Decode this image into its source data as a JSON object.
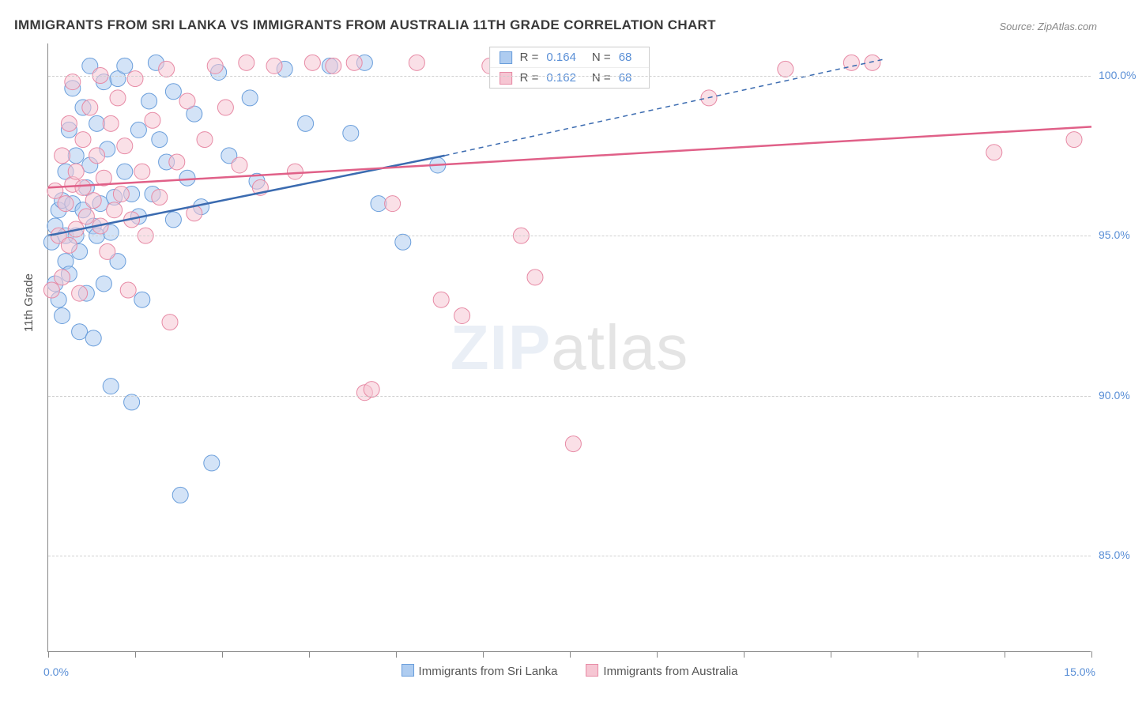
{
  "title": "IMMIGRANTS FROM SRI LANKA VS IMMIGRANTS FROM AUSTRALIA 11TH GRADE CORRELATION CHART",
  "source": "Source: ZipAtlas.com",
  "ylabel": "11th Grade",
  "watermark_zip": "ZIP",
  "watermark_atlas": "atlas",
  "chart": {
    "type": "scatter",
    "xlim": [
      0,
      15
    ],
    "ylim": [
      82,
      101
    ],
    "xticks_low": "0.0%",
    "xticks_high": "15.0%",
    "xtick_positions": [
      0,
      1.25,
      2.5,
      3.75,
      5.0,
      6.25,
      7.5,
      8.75,
      10.0,
      11.25,
      12.5,
      13.75,
      15.0
    ],
    "yticks": [
      {
        "v": 85,
        "label": "85.0%"
      },
      {
        "v": 90,
        "label": "90.0%"
      },
      {
        "v": 95,
        "label": "95.0%"
      },
      {
        "v": 100,
        "label": "100.0%"
      }
    ],
    "grid_color": "#d0d0d0",
    "background_color": "#ffffff",
    "marker_radius": 10,
    "marker_opacity": 0.55,
    "series": [
      {
        "name": "Immigrants from Sri Lanka",
        "fill": "#aeccf0",
        "stroke": "#6a9edb",
        "line_color": "#3b6bb0",
        "trend": {
          "x0": 0,
          "y0": 95.0,
          "x_solid_end": 5.7,
          "y_solid_end": 97.5,
          "x1": 12.0,
          "y1": 100.5
        },
        "points": [
          [
            0.05,
            94.8
          ],
          [
            0.1,
            95.3
          ],
          [
            0.1,
            93.5
          ],
          [
            0.15,
            93.0
          ],
          [
            0.15,
            95.8
          ],
          [
            0.2,
            92.5
          ],
          [
            0.2,
            96.1
          ],
          [
            0.25,
            95.0
          ],
          [
            0.25,
            97.0
          ],
          [
            0.25,
            94.2
          ],
          [
            0.3,
            98.3
          ],
          [
            0.3,
            93.8
          ],
          [
            0.35,
            96.0
          ],
          [
            0.35,
            99.6
          ],
          [
            0.4,
            95.0
          ],
          [
            0.4,
            97.5
          ],
          [
            0.45,
            94.5
          ],
          [
            0.45,
            92.0
          ],
          [
            0.5,
            99.0
          ],
          [
            0.5,
            95.8
          ],
          [
            0.55,
            93.2
          ],
          [
            0.55,
            96.5
          ],
          [
            0.6,
            97.2
          ],
          [
            0.6,
            100.3
          ],
          [
            0.65,
            95.3
          ],
          [
            0.65,
            91.8
          ],
          [
            0.7,
            98.5
          ],
          [
            0.7,
            95.0
          ],
          [
            0.75,
            96.0
          ],
          [
            0.8,
            99.8
          ],
          [
            0.8,
            93.5
          ],
          [
            0.85,
            97.7
          ],
          [
            0.9,
            95.1
          ],
          [
            0.9,
            90.3
          ],
          [
            0.95,
            96.2
          ],
          [
            1.0,
            99.9
          ],
          [
            1.0,
            94.2
          ],
          [
            1.1,
            97.0
          ],
          [
            1.1,
            100.3
          ],
          [
            1.2,
            96.3
          ],
          [
            1.2,
            89.8
          ],
          [
            1.3,
            98.3
          ],
          [
            1.3,
            95.6
          ],
          [
            1.35,
            93.0
          ],
          [
            1.45,
            99.2
          ],
          [
            1.5,
            96.3
          ],
          [
            1.55,
            100.4
          ],
          [
            1.6,
            98.0
          ],
          [
            1.7,
            97.3
          ],
          [
            1.8,
            99.5
          ],
          [
            1.8,
            95.5
          ],
          [
            1.9,
            86.9
          ],
          [
            2.0,
            96.8
          ],
          [
            2.1,
            98.8
          ],
          [
            2.2,
            95.9
          ],
          [
            2.35,
            87.9
          ],
          [
            2.45,
            100.1
          ],
          [
            2.6,
            97.5
          ],
          [
            2.9,
            99.3
          ],
          [
            3.0,
            96.7
          ],
          [
            3.4,
            100.2
          ],
          [
            3.7,
            98.5
          ],
          [
            4.05,
            100.3
          ],
          [
            4.35,
            98.2
          ],
          [
            4.55,
            100.4
          ],
          [
            4.75,
            96.0
          ],
          [
            5.1,
            94.8
          ],
          [
            5.6,
            97.2
          ]
        ]
      },
      {
        "name": "Immigrants from Australia",
        "fill": "#f6c6d3",
        "stroke": "#e78aa5",
        "line_color": "#e06088",
        "trend": {
          "x0": 0,
          "y0": 96.5,
          "x_solid_end": 15,
          "y_solid_end": 98.4,
          "x1": 15,
          "y1": 98.4
        },
        "points": [
          [
            0.05,
            93.3
          ],
          [
            0.1,
            96.4
          ],
          [
            0.15,
            95.0
          ],
          [
            0.2,
            97.5
          ],
          [
            0.2,
            93.7
          ],
          [
            0.25,
            96.0
          ],
          [
            0.3,
            98.5
          ],
          [
            0.3,
            94.7
          ],
          [
            0.35,
            96.6
          ],
          [
            0.35,
            99.8
          ],
          [
            0.4,
            95.2
          ],
          [
            0.4,
            97.0
          ],
          [
            0.45,
            93.2
          ],
          [
            0.5,
            96.5
          ],
          [
            0.5,
            98.0
          ],
          [
            0.55,
            95.6
          ],
          [
            0.6,
            99.0
          ],
          [
            0.65,
            96.1
          ],
          [
            0.7,
            97.5
          ],
          [
            0.75,
            95.3
          ],
          [
            0.75,
            100.0
          ],
          [
            0.8,
            96.8
          ],
          [
            0.85,
            94.5
          ],
          [
            0.9,
            98.5
          ],
          [
            0.95,
            95.8
          ],
          [
            1.0,
            99.3
          ],
          [
            1.05,
            96.3
          ],
          [
            1.1,
            97.8
          ],
          [
            1.15,
            93.3
          ],
          [
            1.2,
            95.5
          ],
          [
            1.25,
            99.9
          ],
          [
            1.35,
            97.0
          ],
          [
            1.4,
            95.0
          ],
          [
            1.5,
            98.6
          ],
          [
            1.6,
            96.2
          ],
          [
            1.7,
            100.2
          ],
          [
            1.75,
            92.3
          ],
          [
            1.85,
            97.3
          ],
          [
            2.0,
            99.2
          ],
          [
            2.1,
            95.7
          ],
          [
            2.25,
            98.0
          ],
          [
            2.4,
            100.3
          ],
          [
            2.55,
            99.0
          ],
          [
            2.75,
            97.2
          ],
          [
            2.85,
            100.4
          ],
          [
            3.05,
            96.5
          ],
          [
            3.25,
            100.3
          ],
          [
            3.55,
            97.0
          ],
          [
            3.8,
            100.4
          ],
          [
            4.1,
            100.3
          ],
          [
            4.4,
            100.4
          ],
          [
            4.55,
            90.1
          ],
          [
            4.65,
            90.2
          ],
          [
            4.95,
            96.0
          ],
          [
            5.3,
            100.4
          ],
          [
            5.65,
            93.0
          ],
          [
            5.95,
            92.5
          ],
          [
            6.35,
            100.3
          ],
          [
            6.8,
            95.0
          ],
          [
            7.0,
            93.7
          ],
          [
            7.55,
            88.5
          ],
          [
            8.3,
            100.3
          ],
          [
            9.5,
            99.3
          ],
          [
            10.6,
            100.2
          ],
          [
            11.55,
            100.4
          ],
          [
            11.85,
            100.4
          ],
          [
            13.6,
            97.6
          ],
          [
            14.75,
            98.0
          ]
        ]
      }
    ],
    "statbox": [
      {
        "swatch_fill": "#aeccf0",
        "swatch_stroke": "#6a9edb",
        "r_label": "R =",
        "r_val": "0.164",
        "n_label": "N =",
        "n_val": "68"
      },
      {
        "swatch_fill": "#f6c6d3",
        "swatch_stroke": "#e78aa5",
        "r_label": "R =",
        "r_val": "0.162",
        "n_label": "N =",
        "n_val": "68"
      }
    ]
  }
}
